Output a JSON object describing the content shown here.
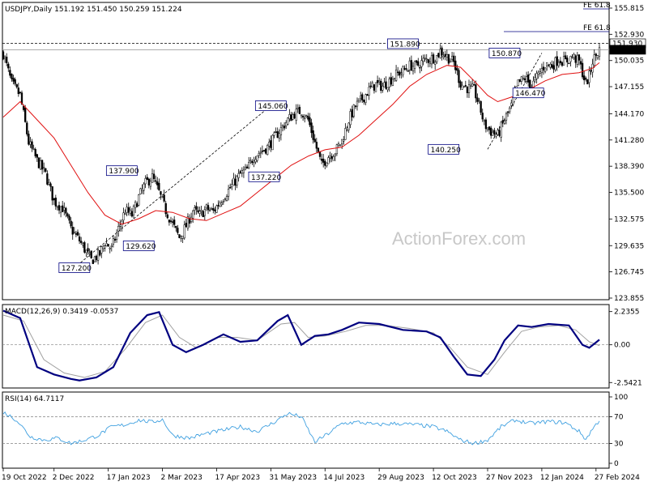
{
  "header": {
    "main": "USDJPY,Daily   151.192 151.450 150.259 151.224",
    "macd": "MACD(12,26,9) 0.3419 -0.0537",
    "rsi": "RSI(14) 64.7117"
  },
  "watermark": "ActionForex.com",
  "colors": {
    "candle": "#000000",
    "ma": "#e01010",
    "macd": "#000080",
    "signal": "#a0a0a0",
    "grid_dash": "#808080",
    "label_border": "#000080",
    "price_tag_bg": "#000000"
  },
  "chart_data": [
    {
      "type": "line",
      "name": "price",
      "title": "USDJPY,Daily",
      "ylim": [
        123.855,
        155.815
      ],
      "y_ticks": [
        "155.815",
        "152.930",
        "150.035",
        "147.155",
        "144.170",
        "141.280",
        "138.390",
        "135.500",
        "132.575",
        "129.635",
        "126.745",
        "123.855"
      ],
      "x_ticks": [
        "19 Oct 2022",
        "2 Dec 2022",
        "17 Jan 2023",
        "2 Mar 2023",
        "17 Apr 2023",
        "31 May 2023",
        "14 Jul 2023",
        "29 Aug 2023",
        "12 Oct 2023",
        "27 Nov 2023",
        "12 Jan 2024",
        "27 Feb 2024"
      ],
      "x_tick_index": [
        0,
        30,
        62,
        94,
        126,
        158,
        190,
        222,
        254,
        286,
        318,
        350
      ],
      "close_path": [
        [
          0,
          150.8
        ],
        [
          5,
          147.5
        ],
        [
          10,
          146.2
        ],
        [
          15,
          141.0
        ],
        [
          20,
          139.0
        ],
        [
          25,
          137.5
        ],
        [
          30,
          134.5
        ],
        [
          35,
          133.8
        ],
        [
          40,
          131.5
        ],
        [
          45,
          130.2
        ],
        [
          52,
          128.0
        ],
        [
          57,
          128.7
        ],
        [
          60,
          130.0
        ],
        [
          64,
          129.3
        ],
        [
          68,
          131.5
        ],
        [
          72,
          133.5
        ],
        [
          76,
          133.0
        ],
        [
          80,
          135.0
        ],
        [
          84,
          136.5
        ],
        [
          88,
          137.2
        ],
        [
          92,
          135.5
        ],
        [
          96,
          133.5
        ],
        [
          100,
          132.0
        ],
        [
          104,
          130.5
        ],
        [
          108,
          131.8
        ],
        [
          112,
          133.5
        ],
        [
          116,
          133.0
        ],
        [
          120,
          133.7
        ],
        [
          124,
          133.4
        ],
        [
          128,
          134.5
        ],
        [
          132,
          135.5
        ],
        [
          136,
          136.5
        ],
        [
          140,
          137.5
        ],
        [
          144,
          138.0
        ],
        [
          148,
          139.5
        ],
        [
          152,
          140.0
        ],
        [
          156,
          140.5
        ],
        [
          160,
          141.5
        ],
        [
          164,
          142.5
        ],
        [
          168,
          143.5
        ],
        [
          172,
          144.2
        ],
        [
          176,
          144.5
        ],
        [
          180,
          143.5
        ],
        [
          184,
          141.0
        ],
        [
          188,
          138.5
        ],
        [
          192,
          139.5
        ],
        [
          196,
          140.0
        ],
        [
          200,
          141.2
        ],
        [
          204,
          143.5
        ],
        [
          208,
          145.0
        ],
        [
          212,
          145.8
        ],
        [
          216,
          146.8
        ],
        [
          220,
          147.4
        ],
        [
          224,
          147.2
        ],
        [
          228,
          147.8
        ],
        [
          232,
          148.5
        ],
        [
          236,
          148.9
        ],
        [
          240,
          149.5
        ],
        [
          244,
          149.4
        ],
        [
          248,
          150.0
        ],
        [
          252,
          150.2
        ],
        [
          256,
          150.5
        ],
        [
          258,
          151.1
        ],
        [
          262,
          150.5
        ],
        [
          266,
          149.8
        ],
        [
          270,
          147.5
        ],
        [
          274,
          147.0
        ],
        [
          278,
          146.8
        ],
        [
          282,
          144.5
        ],
        [
          284,
          143.0
        ],
        [
          288,
          142.2
        ],
        [
          292,
          141.8
        ],
        [
          296,
          143.5
        ],
        [
          300,
          145.0
        ],
        [
          304,
          147.5
        ],
        [
          308,
          148.1
        ],
        [
          312,
          147.2
        ],
        [
          316,
          148.5
        ],
        [
          320,
          149.6
        ],
        [
          324,
          149.5
        ],
        [
          328,
          150.2
        ],
        [
          332,
          149.9
        ],
        [
          336,
          150.5
        ],
        [
          340,
          149.9
        ],
        [
          344,
          147.5
        ],
        [
          346,
          148.3
        ],
        [
          348,
          150.0
        ],
        [
          352,
          151.224
        ]
      ],
      "ma_path": [
        [
          0,
          143.8
        ],
        [
          10,
          145.5
        ],
        [
          20,
          143.5
        ],
        [
          30,
          141.5
        ],
        [
          40,
          138.5
        ],
        [
          50,
          135.5
        ],
        [
          60,
          133.0
        ],
        [
          70,
          132.0
        ],
        [
          80,
          132.6
        ],
        [
          90,
          133.5
        ],
        [
          100,
          133.3
        ],
        [
          110,
          132.6
        ],
        [
          120,
          132.4
        ],
        [
          130,
          133.2
        ],
        [
          140,
          134.0
        ],
        [
          150,
          135.5
        ],
        [
          160,
          137.0
        ],
        [
          170,
          138.5
        ],
        [
          180,
          139.5
        ],
        [
          190,
          140.2
        ],
        [
          200,
          140.5
        ],
        [
          210,
          141.8
        ],
        [
          220,
          143.5
        ],
        [
          230,
          145.2
        ],
        [
          240,
          147.2
        ],
        [
          250,
          148.5
        ],
        [
          256,
          149.0
        ],
        [
          262,
          149.5
        ],
        [
          270,
          149.3
        ],
        [
          278,
          147.8
        ],
        [
          286,
          146.2
        ],
        [
          292,
          145.5
        ],
        [
          300,
          146.0
        ],
        [
          310,
          146.8
        ],
        [
          320,
          147.8
        ],
        [
          330,
          148.5
        ],
        [
          340,
          148.7
        ],
        [
          348,
          149.2
        ],
        [
          352,
          149.8
        ]
      ],
      "price_tags": [
        {
          "text": "151.930",
          "value": 151.93,
          "style": "outline"
        },
        {
          "text": "151.224",
          "value": 151.224,
          "style": "filled"
        }
      ],
      "annotations": [
        {
          "text": "151.890",
          "x": 236,
          "value": 151.89
        },
        {
          "text": "150.870",
          "x": 296,
          "value": 150.87
        },
        {
          "text": "146.470",
          "x": 310,
          "value": 146.47
        },
        {
          "text": "145.060",
          "x": 158,
          "value": 145.06
        },
        {
          "text": "140.250",
          "x": 260,
          "value": 140.25
        },
        {
          "text": "137.900",
          "x": 70,
          "value": 137.9
        },
        {
          "text": "137.220",
          "x": 154,
          "value": 137.22
        },
        {
          "text": "129.620",
          "x": 80,
          "value": 129.62
        },
        {
          "text": "127.200",
          "x": 42,
          "value": 127.2
        },
        {
          "text": "FE 61.8",
          "x": 330,
          "value": 155.815
        },
        {
          "text": "FE 61.8",
          "x": 330,
          "value": 153.5
        }
      ]
    },
    {
      "type": "line",
      "name": "MACD(12,26,9)",
      "ylim": [
        -2.8,
        2.6
      ],
      "y_ticks": [
        "2.2355",
        "0.00",
        "-2.5421"
      ],
      "macd_path": [
        [
          0,
          2.3
        ],
        [
          10,
          1.8
        ],
        [
          20,
          -1.5
        ],
        [
          30,
          -2.0
        ],
        [
          40,
          -2.3
        ],
        [
          45,
          -2.4
        ],
        [
          55,
          -2.2
        ],
        [
          65,
          -1.5
        ],
        [
          75,
          0.8
        ],
        [
          85,
          2.0
        ],
        [
          92,
          2.2
        ],
        [
          100,
          0.0
        ],
        [
          108,
          -0.5
        ],
        [
          118,
          0.0
        ],
        [
          130,
          0.7
        ],
        [
          140,
          0.2
        ],
        [
          150,
          0.3
        ],
        [
          162,
          1.6
        ],
        [
          168,
          2.0
        ],
        [
          176,
          0.0
        ],
        [
          184,
          0.6
        ],
        [
          192,
          0.7
        ],
        [
          200,
          1.0
        ],
        [
          210,
          1.5
        ],
        [
          222,
          1.4
        ],
        [
          236,
          1.0
        ],
        [
          250,
          0.9
        ],
        [
          258,
          0.5
        ],
        [
          266,
          -0.8
        ],
        [
          274,
          -2.0
        ],
        [
          282,
          -2.1
        ],
        [
          290,
          -1.0
        ],
        [
          296,
          0.3
        ],
        [
          304,
          1.3
        ],
        [
          312,
          1.2
        ],
        [
          322,
          1.4
        ],
        [
          334,
          1.3
        ],
        [
          342,
          0.0
        ],
        [
          346,
          -0.2
        ],
        [
          352,
          0.34
        ]
      ],
      "signal_path": [
        [
          0,
          2.0
        ],
        [
          12,
          1.6
        ],
        [
          24,
          -1.0
        ],
        [
          36,
          -1.9
        ],
        [
          48,
          -2.2
        ],
        [
          60,
          -1.8
        ],
        [
          72,
          -0.3
        ],
        [
          84,
          1.5
        ],
        [
          94,
          2.0
        ],
        [
          104,
          0.5
        ],
        [
          114,
          -0.2
        ],
        [
          126,
          0.5
        ],
        [
          138,
          0.5
        ],
        [
          150,
          0.3
        ],
        [
          164,
          1.4
        ],
        [
          172,
          1.5
        ],
        [
          180,
          0.5
        ],
        [
          190,
          0.6
        ],
        [
          202,
          0.9
        ],
        [
          214,
          1.3
        ],
        [
          226,
          1.3
        ],
        [
          240,
          1.1
        ],
        [
          254,
          0.8
        ],
        [
          264,
          -0.2
        ],
        [
          274,
          -1.5
        ],
        [
          286,
          -2.0
        ],
        [
          296,
          -0.5
        ],
        [
          306,
          0.9
        ],
        [
          316,
          1.2
        ],
        [
          328,
          1.3
        ],
        [
          338,
          1.0
        ],
        [
          346,
          0.2
        ],
        [
          352,
          -0.05
        ]
      ]
    },
    {
      "type": "line",
      "name": "RSI(14)",
      "ylim": [
        0,
        100
      ],
      "y_ticks": [
        "100",
        "70",
        "30",
        "0"
      ],
      "rsi_path": [
        [
          0,
          77
        ],
        [
          8,
          65
        ],
        [
          16,
          40
        ],
        [
          24,
          35
        ],
        [
          32,
          38
        ],
        [
          40,
          30
        ],
        [
          48,
          35
        ],
        [
          56,
          42
        ],
        [
          64,
          55
        ],
        [
          72,
          58
        ],
        [
          80,
          65
        ],
        [
          88,
          62
        ],
        [
          94,
          66
        ],
        [
          100,
          42
        ],
        [
          110,
          38
        ],
        [
          120,
          45
        ],
        [
          130,
          50
        ],
        [
          140,
          55
        ],
        [
          150,
          48
        ],
        [
          160,
          62
        ],
        [
          168,
          75
        ],
        [
          176,
          70
        ],
        [
          184,
          32
        ],
        [
          192,
          45
        ],
        [
          200,
          60
        ],
        [
          210,
          62
        ],
        [
          220,
          58
        ],
        [
          232,
          60
        ],
        [
          244,
          58
        ],
        [
          254,
          55
        ],
        [
          262,
          48
        ],
        [
          270,
          35
        ],
        [
          278,
          30
        ],
        [
          286,
          35
        ],
        [
          294,
          55
        ],
        [
          302,
          65
        ],
        [
          312,
          60
        ],
        [
          322,
          63
        ],
        [
          332,
          61
        ],
        [
          340,
          48
        ],
        [
          344,
          36
        ],
        [
          348,
          52
        ],
        [
          352,
          64.7
        ]
      ]
    }
  ]
}
